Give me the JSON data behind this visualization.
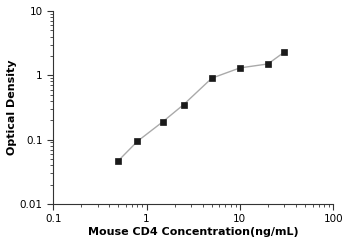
{
  "x_data": [
    0.5,
    0.8,
    1.5,
    2.5,
    5.0,
    10.0,
    20.0,
    30.0
  ],
  "y_data": [
    0.047,
    0.094,
    0.19,
    0.35,
    0.9,
    1.3,
    1.5,
    2.3
  ],
  "xlabel": "Mouse CD4 Concentration(ng/mL)",
  "ylabel": "Optical Density",
  "xlim": [
    0.1,
    100
  ],
  "ylim": [
    0.01,
    10
  ],
  "x_ticks": [
    0.1,
    1,
    10,
    100
  ],
  "y_ticks": [
    0.01,
    0.1,
    1,
    10
  ],
  "marker": "s",
  "marker_color": "#1a1a1a",
  "marker_size": 4.5,
  "line_color": "#aaaaaa",
  "line_width": 1.0,
  "background_color": "#ffffff",
  "label_fontsize": 8,
  "tick_fontsize": 7.5
}
